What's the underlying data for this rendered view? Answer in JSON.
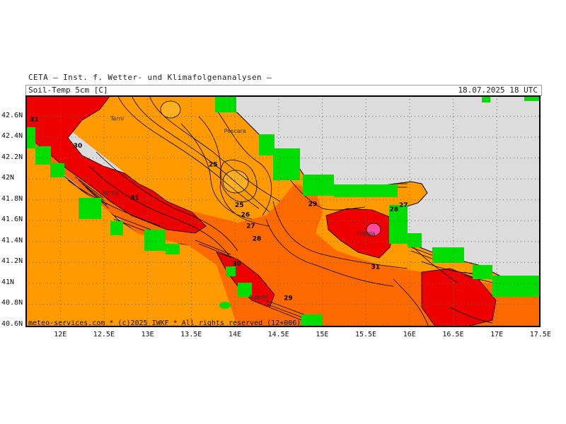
{
  "header": {
    "organization": "CETA — Inst. f. Wetter- und Klimafolgenanalysen —",
    "variable": "Soil-Temp 5cm [C]",
    "datetime": "18.07.2025 18 UTC"
  },
  "footer": {
    "credit": "meteo-services.com * (c)2025 IWKF * All rights reserved (12+006)"
  },
  "axes": {
    "lon_ticks": [
      "12E",
      "12.5E",
      "13E",
      "13.5E",
      "14E",
      "14.5E",
      "15E",
      "15.5E",
      "16E",
      "16.5E",
      "17E",
      "17.5E"
    ],
    "lat_ticks": [
      "42.6N",
      "42.4N",
      "42.2N",
      "42N",
      "41.8N",
      "41.6N",
      "41.4N",
      "41.2N",
      "41N",
      "40.8N",
      "40.6N"
    ]
  },
  "contour_labels": [
    {
      "text": "31",
      "lon": 11.7,
      "lat": 42.55
    },
    {
      "text": "30",
      "lon": 12.2,
      "lat": 42.3
    },
    {
      "text": "25",
      "lon": 13.75,
      "lat": 42.12
    },
    {
      "text": "25",
      "lon": 14.05,
      "lat": 41.73
    },
    {
      "text": "26",
      "lon": 14.12,
      "lat": 41.64
    },
    {
      "text": "27",
      "lon": 14.18,
      "lat": 41.53
    },
    {
      "text": "28",
      "lon": 14.25,
      "lat": 41.41
    },
    {
      "text": "29",
      "lon": 14.89,
      "lat": 41.74
    },
    {
      "text": "27",
      "lon": 15.93,
      "lat": 41.73
    },
    {
      "text": "28",
      "lon": 15.82,
      "lat": 41.69
    },
    {
      "text": "30",
      "lon": 14.02,
      "lat": 41.17
    },
    {
      "text": "29",
      "lon": 14.61,
      "lat": 40.84
    },
    {
      "text": "31",
      "lon": 15.61,
      "lat": 41.14
    },
    {
      "text": "31",
      "lon": 12.85,
      "lat": 41.8
    }
  ],
  "places": [
    {
      "name": "Terni",
      "lon": 12.65,
      "lat": 42.56
    },
    {
      "name": "Pescara",
      "lon": 14.0,
      "lat": 42.44
    },
    {
      "name": "Roma",
      "lon": 12.57,
      "lat": 41.85
    },
    {
      "name": "Foggia",
      "lon": 15.5,
      "lat": 41.46
    },
    {
      "name": "Napoli",
      "lon": 14.27,
      "lat": 40.85
    }
  ],
  "legend_colors": {
    "sea": "#dcdcdc",
    "no_data": "#00dd00",
    "cool": "#ff9a00",
    "mid": "#ff6a00",
    "warm": "#ee0000",
    "hot": "#ff4aa0"
  }
}
